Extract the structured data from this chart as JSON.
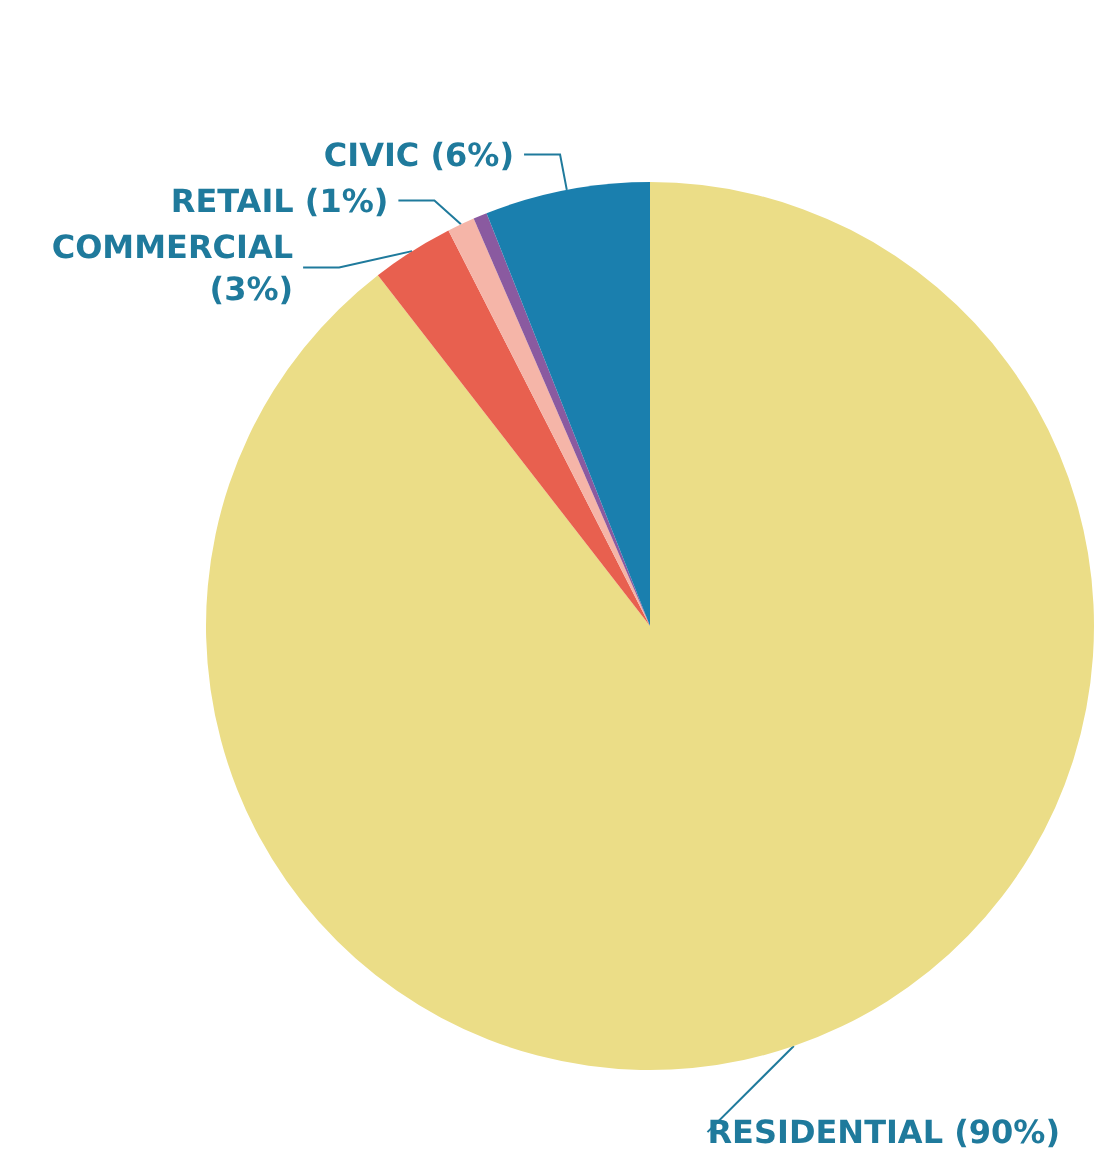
{
  "chart_data": {
    "type": "pie",
    "categories": [
      "RESIDENTIAL",
      "COMMERCIAL",
      "RETAIL",
      null,
      "CIVIC"
    ],
    "values": [
      89.5,
      3,
      1,
      0.5,
      6
    ],
    "value_labels": [
      "(90%)",
      "(3%)",
      "(1%)",
      null,
      "(6%)"
    ],
    "colors": [
      "#ebdd87",
      "#e8604f",
      "#f5b5a8",
      "#8a5aa0",
      "#1a7fae"
    ],
    "legend": false
  }
}
